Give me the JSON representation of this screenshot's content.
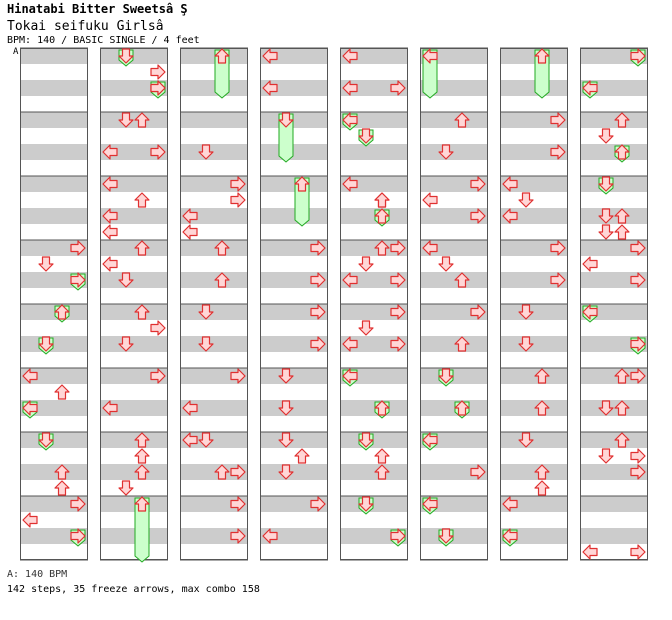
{
  "header": {
    "title": "Hinatabi Bitter Sweetsâ Ş",
    "subtitle": "Tokai seifuku Girlsâ",
    "info": "BPM: 140 / BASIC SINGLE / 4 feet",
    "marker": "A"
  },
  "footer": {
    "bpm_line": "A: 140 BPM",
    "stats_line": "142 steps, 35 freeze arrows, max combo 158"
  },
  "colors": {
    "stripe_dark": "#cccccc",
    "stripe_light": "#ffffff",
    "column_border": "#555555",
    "arrow_fill": "#ffd6d6",
    "arrow_stroke": "#e03030",
    "freeze_fill": "#ccffcc",
    "freeze_stroke": "#22aa22"
  },
  "chart_data": {
    "type": "step-chart",
    "mode": "BASIC SINGLE",
    "bpm": 140,
    "lanes": [
      "left",
      "down",
      "up",
      "right"
    ],
    "columns": 8,
    "measures_per_column": 8,
    "notes_description": "step arrows and freeze arrows across 64 measures"
  }
}
